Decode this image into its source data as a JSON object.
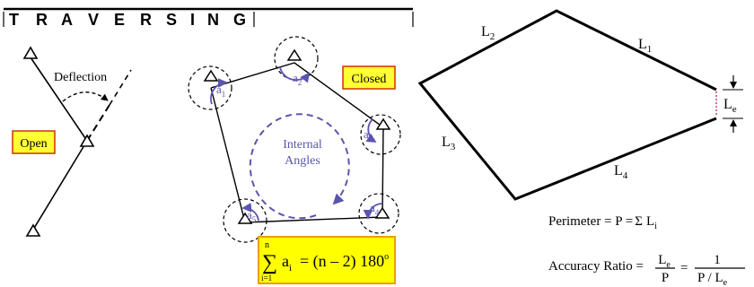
{
  "title": {
    "letters": [
      "T",
      "R",
      "A",
      "V",
      "E",
      "R",
      "S",
      "I",
      "N",
      "G"
    ]
  },
  "open_panel": {
    "deflection_label": "Deflection",
    "open_label": "Open"
  },
  "closed_panel": {
    "closed_label": "Closed",
    "internal_line1": "Internal",
    "internal_line2": "Angles",
    "angle_base": "a",
    "angle_subscripts": [
      "1",
      "2",
      "3",
      "4",
      "5"
    ],
    "formula": {
      "sum_symbol": "∑",
      "upper": "n",
      "lower": "i=1",
      "lhs_base": "a",
      "lhs_sub": "i",
      "rhs": "= (n – 2) 180",
      "degree": "o"
    }
  },
  "error_panel": {
    "side_labels": [
      {
        "base": "L",
        "sub": "1"
      },
      {
        "base": "L",
        "sub": "2"
      },
      {
        "base": "L",
        "sub": "3"
      },
      {
        "base": "L",
        "sub": "4"
      }
    ],
    "closure_label": {
      "base": "L",
      "sub": "e"
    },
    "perimeter": {
      "lhs": "Perimeter = P =",
      "sigma": "Σ",
      "base": "L",
      "sub": "i"
    },
    "accuracy": {
      "lhs": "Accuracy Ratio =",
      "frac1_num_base": "L",
      "frac1_num_sub": "e",
      "frac1_den": "P",
      "eq": "=",
      "frac2_num": "1",
      "frac2_den_pre": "P / L",
      "frac2_den_sub": "e"
    }
  },
  "colors": {
    "line": "#000000",
    "angle_arc": "#5b55b0",
    "label_box": "#ffff33",
    "label_border": "#cc3300",
    "formula_box": "#ffff00",
    "formula_border": "#e8a000",
    "closure_gap": "#c04080"
  }
}
